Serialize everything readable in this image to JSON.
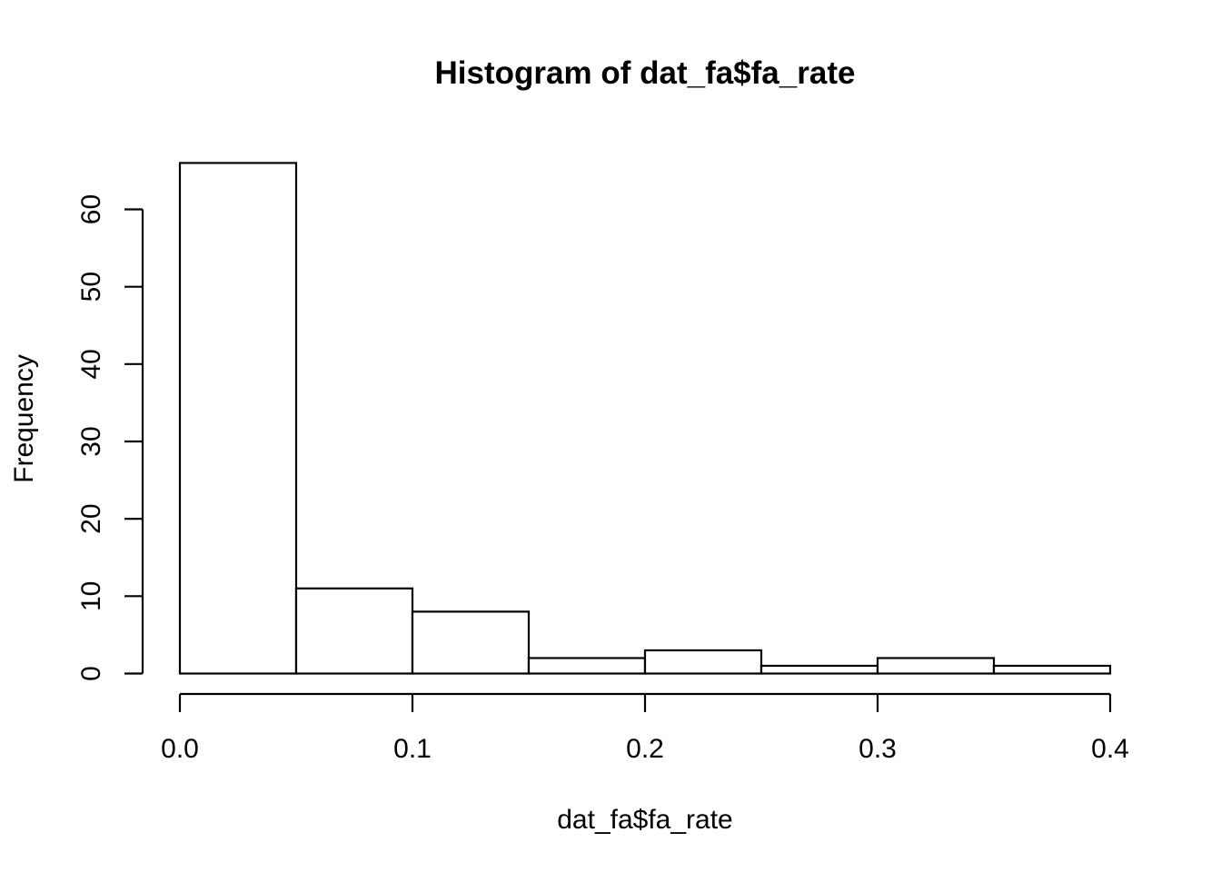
{
  "chart_data": {
    "type": "bar",
    "title": "Histogram of dat_fa$fa_rate",
    "xlabel": "dat_fa$fa_rate",
    "ylabel": "Frequency",
    "bins": [
      {
        "from": 0.0,
        "to": 0.05,
        "count": 66
      },
      {
        "from": 0.05,
        "to": 0.1,
        "count": 11
      },
      {
        "from": 0.1,
        "to": 0.15,
        "count": 8
      },
      {
        "from": 0.15,
        "to": 0.2,
        "count": 2
      },
      {
        "from": 0.2,
        "to": 0.25,
        "count": 3
      },
      {
        "from": 0.25,
        "to": 0.3,
        "count": 1
      },
      {
        "from": 0.3,
        "to": 0.35,
        "count": 2
      },
      {
        "from": 0.35,
        "to": 0.4,
        "count": 1
      }
    ],
    "xlim": [
      0,
      0.4
    ],
    "ylim": [
      0,
      66
    ],
    "x_ticks": [
      "0.0",
      "0.1",
      "0.2",
      "0.3",
      "0.4"
    ],
    "y_ticks": [
      "0",
      "10",
      "20",
      "30",
      "40",
      "50",
      "60"
    ],
    "grid": false
  }
}
